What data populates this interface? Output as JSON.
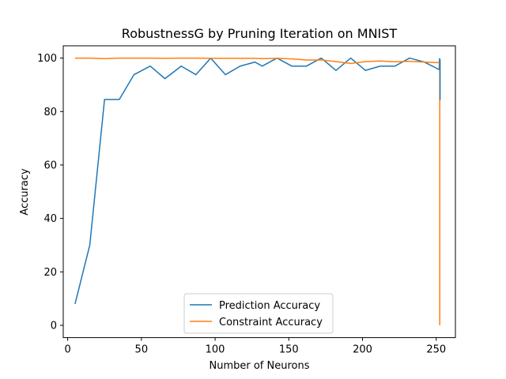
{
  "chart_data": {
    "type": "line",
    "title": "RobustnessG by Pruning Iteration on MNIST",
    "xlabel": "Number of Neurons",
    "ylabel": "Accuracy",
    "xlim": [
      -3,
      263
    ],
    "ylim": [
      -4.6,
      104.6
    ],
    "xticks": [
      0,
      50,
      100,
      150,
      200,
      250
    ],
    "yticks": [
      0,
      20,
      40,
      60,
      80,
      100
    ],
    "grid": false,
    "legend_position": "lower-center",
    "series": [
      {
        "name": "Prediction Accuracy",
        "color": "#1f77b4",
        "x": [
          5,
          15,
          25,
          35,
          45,
          56,
          66,
          77,
          87,
          97,
          107,
          117,
          127,
          132,
          142,
          152,
          162,
          172,
          182,
          192,
          202,
          212,
          222,
          232,
          242,
          252,
          252.3
        ],
        "y": [
          8,
          30,
          84.5,
          84.5,
          93.8,
          97,
          92.3,
          97,
          93.8,
          100,
          93.8,
          97,
          98.5,
          97,
          100,
          97,
          97,
          100,
          95.4,
          100,
          95.4,
          97,
          97,
          100,
          98.5,
          95.7,
          100
        ]
      },
      {
        "name": "Constraint Accuracy",
        "color": "#ff7f0e",
        "x": [
          5,
          15,
          25,
          35,
          45,
          56,
          66,
          77,
          87,
          97,
          107,
          117,
          127,
          132,
          142,
          152,
          162,
          172,
          182,
          192,
          202,
          212,
          222,
          232,
          242,
          252
        ],
        "y": [
          100,
          100,
          99.8,
          100,
          100,
          100,
          99.9,
          100,
          100,
          99.9,
          99.9,
          99.9,
          99.9,
          99.8,
          99.9,
          99.7,
          99.3,
          99.3,
          98.7,
          98,
          98.7,
          98.9,
          98.6,
          98.8,
          98.5,
          98.3
        ]
      }
    ],
    "drop_markers": [
      {
        "series": 1,
        "x": 252.4,
        "y_from": 98.3,
        "y_to": 0
      },
      {
        "series": 0,
        "x": 252.6,
        "y_from": 99.5,
        "y_to": 84.3
      }
    ]
  }
}
